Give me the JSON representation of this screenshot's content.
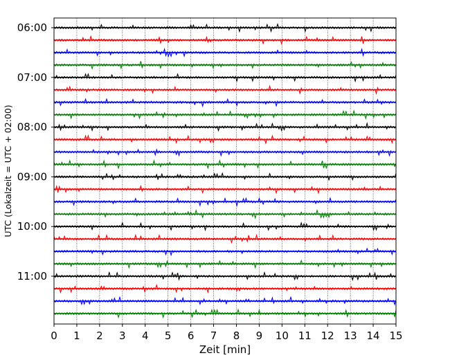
{
  "chart_data": {
    "type": "line",
    "title": "",
    "xlabel": "Zeit  [min]",
    "ylabel": "UTC (Lokalzeit = UTC + 02:00)",
    "xlim": [
      0,
      15
    ],
    "x_ticks": [
      "0",
      "1",
      "2",
      "3",
      "4",
      "5",
      "6",
      "7",
      "8",
      "9",
      "10",
      "11",
      "12",
      "13",
      "14",
      "15"
    ],
    "y_tick_labels": [
      "06:00",
      "07:00",
      "08:00",
      "09:00",
      "10:00",
      "11:00"
    ],
    "trace_interval_minutes": 15,
    "trace_start": "06:00",
    "trace_count": 24,
    "color_cycle": [
      "#000000",
      "#ff0000",
      "#0000ff",
      "#008000"
    ],
    "grid": "vertical dotted lines at each minute",
    "traces": [
      {
        "start": "06:00",
        "color": "#000000"
      },
      {
        "start": "06:15",
        "color": "#ff0000"
      },
      {
        "start": "06:30",
        "color": "#0000ff"
      },
      {
        "start": "06:45",
        "color": "#008000"
      },
      {
        "start": "07:00",
        "color": "#000000"
      },
      {
        "start": "07:15",
        "color": "#ff0000"
      },
      {
        "start": "07:30",
        "color": "#0000ff"
      },
      {
        "start": "07:45",
        "color": "#008000"
      },
      {
        "start": "08:00",
        "color": "#000000"
      },
      {
        "start": "08:15",
        "color": "#ff0000"
      },
      {
        "start": "08:30",
        "color": "#0000ff"
      },
      {
        "start": "08:45",
        "color": "#008000"
      },
      {
        "start": "09:00",
        "color": "#000000"
      },
      {
        "start": "09:15",
        "color": "#ff0000"
      },
      {
        "start": "09:30",
        "color": "#0000ff"
      },
      {
        "start": "09:45",
        "color": "#008000"
      },
      {
        "start": "10:00",
        "color": "#000000"
      },
      {
        "start": "10:15",
        "color": "#ff0000"
      },
      {
        "start": "10:30",
        "color": "#0000ff"
      },
      {
        "start": "10:45",
        "color": "#008000"
      },
      {
        "start": "11:00",
        "color": "#000000"
      },
      {
        "start": "11:15",
        "color": "#ff0000"
      },
      {
        "start": "11:30",
        "color": "#0000ff"
      },
      {
        "start": "11:45",
        "color": "#008000"
      }
    ]
  }
}
